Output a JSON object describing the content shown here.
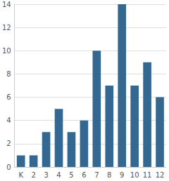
{
  "chart_data": {
    "type": "bar",
    "categories": [
      "K",
      "2",
      "3",
      "4",
      "5",
      "6",
      "7",
      "8",
      "9",
      "10",
      "11",
      "12"
    ],
    "values": [
      1,
      1,
      3,
      5,
      3,
      4,
      10,
      7,
      14,
      7,
      9,
      6
    ],
    "color": "#356890",
    "ylim": [
      0,
      14
    ],
    "yticks": [
      0,
      2,
      4,
      6,
      8,
      10,
      12,
      14
    ],
    "grid": true
  }
}
